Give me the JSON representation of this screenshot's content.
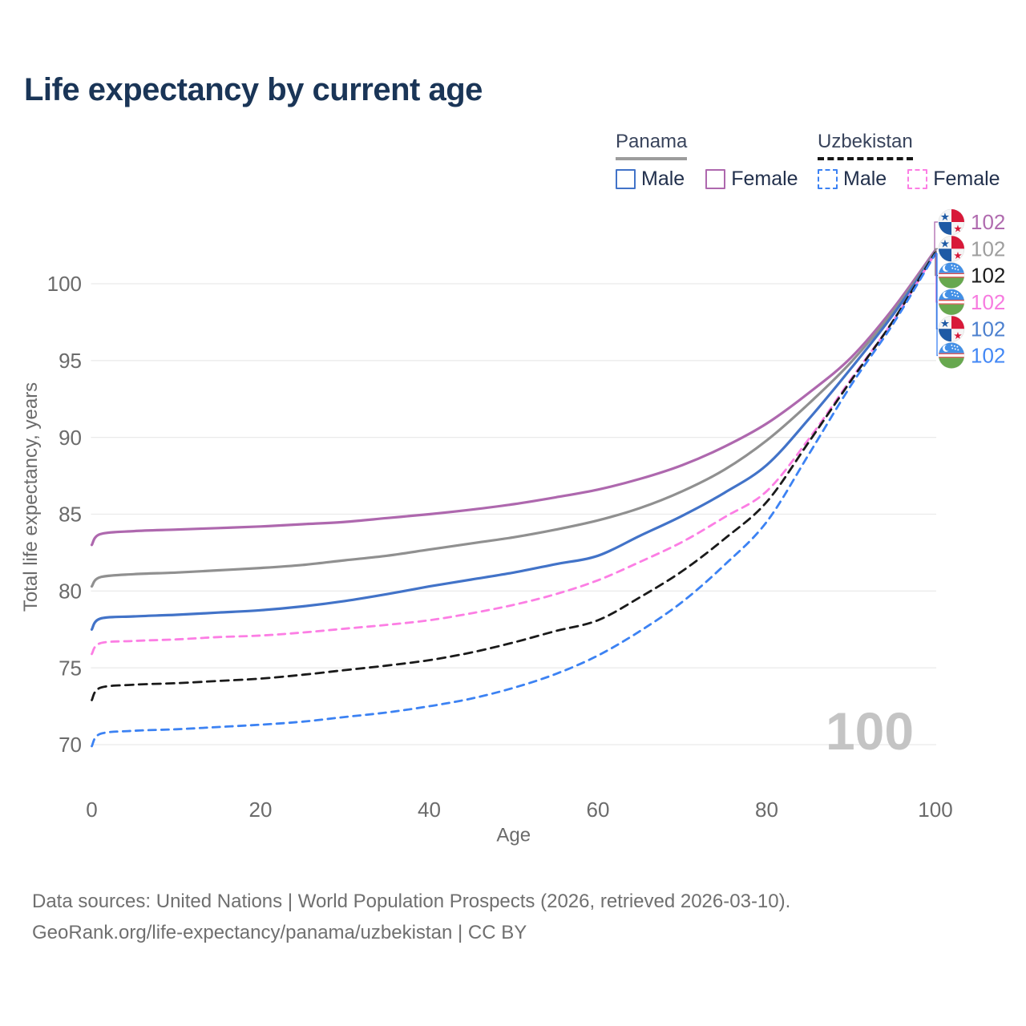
{
  "title": "Life expectancy by current age",
  "legend": {
    "panama": {
      "country": "Panama",
      "male": "Male",
      "female": "Female"
    },
    "uzbekistan": {
      "country": "Uzbekistan",
      "male": "Male",
      "female": "Female"
    }
  },
  "watermark": "100",
  "footer": {
    "line1": "Data sources: United Nations | World Population Prospects (2026, retrieved 2026-03-10).",
    "line2": "GeoRank.org/life-expectancy/panama/uzbekistan | CC BY"
  },
  "colors": {
    "title": "#1A3557",
    "axis_text": "#6B6B6B",
    "gridline": "#EBEBEB",
    "watermark": "#C4C4C4",
    "panama_male": "#4273C8",
    "panama_female": "#AE68AE",
    "panama_total": "#909090",
    "uzbekistan_male": "#3C82F3",
    "uzbekistan_female": "#FC7EE4",
    "uzbekistan_total": "#1A1A1A"
  },
  "chart_data": {
    "type": "line",
    "title": "Life expectancy by current age",
    "xlabel": "Age",
    "ylabel": "Total life expectancy, years",
    "xlim": [
      0,
      100
    ],
    "ylim": [
      69,
      103
    ],
    "x_ticks": [
      0,
      20,
      40,
      60,
      80,
      100
    ],
    "y_ticks": [
      70,
      75,
      80,
      85,
      90,
      95,
      100
    ],
    "grid": "horizontal-only",
    "legend_position": "top-right",
    "x": [
      0,
      1,
      5,
      10,
      15,
      20,
      25,
      30,
      35,
      40,
      45,
      50,
      55,
      60,
      65,
      70,
      75,
      80,
      85,
      90,
      95,
      100
    ],
    "series": [
      {
        "id": "panama_female",
        "name": "Panama Female",
        "country": "Panama",
        "sex": "Female",
        "color": "#AE68AE",
        "style": "solid",
        "flag": "panama",
        "end_label": "102",
        "label_color": "#B06BAF",
        "values": [
          83.0,
          83.7,
          83.9,
          84.0,
          84.1,
          84.2,
          84.35,
          84.5,
          84.75,
          85.0,
          85.3,
          85.65,
          86.1,
          86.6,
          87.3,
          88.2,
          89.4,
          90.9,
          92.9,
          95.2,
          98.4,
          102.2
        ]
      },
      {
        "id": "panama_total",
        "name": "Panama (both sexes)",
        "country": "Panama",
        "sex": "Both",
        "color": "#909090",
        "style": "solid",
        "flag": "panama",
        "end_label": "102",
        "label_color": "#9E9E9E",
        "values": [
          80.3,
          80.9,
          81.1,
          81.2,
          81.35,
          81.5,
          81.7,
          82.0,
          82.3,
          82.7,
          83.1,
          83.5,
          84.0,
          84.6,
          85.4,
          86.5,
          87.9,
          89.8,
          92.2,
          94.9,
          98.2,
          102.1
        ]
      },
      {
        "id": "panama_male",
        "name": "Panama Male",
        "country": "Panama",
        "sex": "Male",
        "color": "#4273C8",
        "style": "solid",
        "flag": "panama",
        "end_label": "102",
        "label_color": "#4C80CF",
        "values": [
          77.5,
          78.2,
          78.35,
          78.45,
          78.6,
          78.75,
          79.0,
          79.35,
          79.8,
          80.3,
          80.75,
          81.2,
          81.75,
          82.3,
          83.6,
          84.9,
          86.4,
          88.2,
          91.2,
          94.5,
          98.0,
          102.0
        ]
      },
      {
        "id": "uzbekistan_female",
        "name": "Uzbekistan Female",
        "country": "Uzbekistan",
        "sex": "Female",
        "color": "#FC7EE4",
        "style": "dashed",
        "flag": "uzbekistan",
        "end_label": "102",
        "label_color": "#F77BE0",
        "values": [
          75.9,
          76.6,
          76.75,
          76.85,
          77.0,
          77.1,
          77.3,
          77.55,
          77.8,
          78.1,
          78.55,
          79.1,
          79.8,
          80.7,
          81.9,
          83.2,
          84.8,
          86.5,
          89.9,
          93.8,
          97.6,
          102.02
        ]
      },
      {
        "id": "uzbekistan_total",
        "name": "Uzbekistan (both sexes)",
        "country": "Uzbekistan",
        "sex": "Both",
        "color": "#1A1A1A",
        "style": "dashed",
        "flag": "uzbekistan",
        "end_label": "102",
        "label_color": "#1A1A1A",
        "values": [
          72.9,
          73.7,
          73.9,
          74.0,
          74.15,
          74.3,
          74.55,
          74.85,
          75.15,
          75.5,
          76.0,
          76.65,
          77.4,
          78.1,
          79.6,
          81.3,
          83.4,
          85.8,
          89.7,
          93.7,
          97.6,
          102.06
        ]
      },
      {
        "id": "uzbekistan_male",
        "name": "Uzbekistan Male",
        "country": "Uzbekistan",
        "sex": "Male",
        "color": "#3C82F3",
        "style": "dashed",
        "flag": "uzbekistan",
        "end_label": "102",
        "label_color": "#4287F5",
        "values": [
          69.9,
          70.7,
          70.9,
          71.0,
          71.15,
          71.3,
          71.5,
          71.8,
          72.1,
          72.5,
          73.0,
          73.7,
          74.6,
          75.8,
          77.4,
          79.3,
          81.7,
          84.5,
          88.9,
          93.4,
          97.4,
          101.95
        ]
      }
    ],
    "end_label_order": [
      "panama_female",
      "panama_total",
      "uzbekistan_total",
      "uzbekistan_female",
      "panama_male",
      "uzbekistan_male"
    ]
  }
}
